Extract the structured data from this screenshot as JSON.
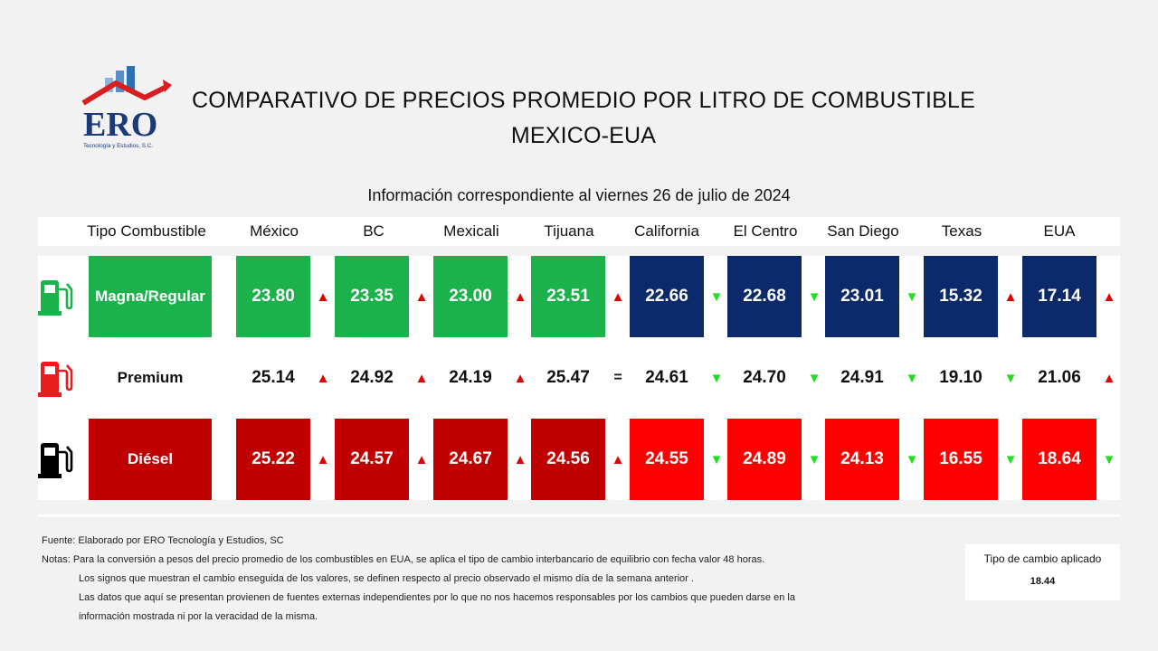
{
  "logo": {
    "text": "ERO",
    "tagline": "Tecnología y Estudios, S.C."
  },
  "title": {
    "line1": "COMPARATIVO DE PRECIOS PROMEDIO POR LITRO DE COMBUSTIBLE",
    "line2": "MEXICO-EUA"
  },
  "subtitle": "Información correspondiente al viernes 26 de julio de 2024",
  "table": {
    "headers": [
      "Tipo Combustible",
      "México",
      "BC",
      "Mexicali",
      "Tijuana",
      "California",
      "El Centro",
      "San Diego",
      "Texas",
      "EUA"
    ],
    "rows": [
      {
        "label": "Magna/Regular",
        "icon": "fuel-pump-green-icon",
        "values": [
          "23.80",
          "23.35",
          "23.00",
          "23.51",
          "22.66",
          "22.68",
          "23.01",
          "15.32",
          "17.14"
        ],
        "signs": [
          "▲",
          "▲",
          "▲",
          "▲",
          "▼",
          "▼",
          "▼",
          "▲",
          "▲"
        ]
      },
      {
        "label": "Premium",
        "icon": "fuel-pump-red-icon",
        "values": [
          "25.14",
          "24.92",
          "24.19",
          "25.47",
          "24.61",
          "24.70",
          "24.91",
          "19.10",
          "21.06"
        ],
        "signs": [
          "▲",
          "▲",
          "▲",
          "=",
          "▼",
          "▼",
          "▼",
          "▼",
          "▲"
        ]
      },
      {
        "label": "Diésel",
        "icon": "fuel-pump-black-icon",
        "values": [
          "25.22",
          "24.57",
          "24.67",
          "24.56",
          "24.55",
          "24.89",
          "24.13",
          "16.55",
          "18.64"
        ],
        "signs": [
          "▲",
          "▲",
          "▲",
          "▲",
          "▼",
          "▼",
          "▼",
          "▼",
          "▼"
        ]
      }
    ]
  },
  "colors": {
    "mx_green": "#1bb24b",
    "us_navy": "#0c2a6b",
    "mx_darkred": "#c00000",
    "us_red": "#ff0000",
    "white": "#ffffff",
    "arrow_up": "#e00000",
    "arrow_down": "#22dd22"
  },
  "notes": {
    "source": "Fuente: Elaborado por ERO Tecnología y Estudios, SC",
    "line1": "Notas:  Para la conversión a pesos del precio promedio de los combustibles en EUA, se aplica el tipo de cambio interbancario de equilibrio con fecha valor 48 horas.",
    "line2": "Los signos que muestran el cambio enseguida de los valores, se definen respecto al precio observado el mismo día de la semana anterior .",
    "line3": "Las datos que aquí se presentan provienen de fuentes externas independientes por lo que no nos hacemos responsables por los cambios que pueden darse en  la",
    "line4": "información mostrada ni por la veracidad de la misma."
  },
  "exchange_rate": {
    "label": "Tipo de cambio aplicado",
    "value": "18.44"
  }
}
